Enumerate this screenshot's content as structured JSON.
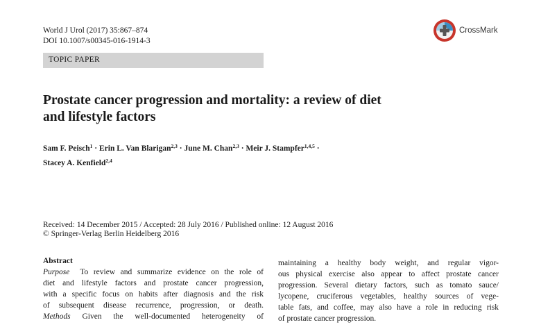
{
  "header": {
    "journal_line1": "World J Urol (2017) 35:867–874",
    "journal_line2": "DOI 10.1007/s00345-016-1914-3",
    "crossmark_label": "CrossMark",
    "crossmark_icon": "crossmark-icon",
    "topic": "TOPIC PAPER"
  },
  "article": {
    "title_line1": "Prostate cancer progression and mortality: a review of diet",
    "title_line2": "and lifestyle factors",
    "authors": [
      {
        "name": "Sam F. Peisch",
        "sup": "1",
        "sep": " · "
      },
      {
        "name": "Erin L. Van Blarigan",
        "sup": "2,3",
        "sep": " · "
      },
      {
        "name": "June M. Chan",
        "sup": "2,3",
        "sep": " · "
      },
      {
        "name": "Meir J. Stampfer",
        "sup": "1,4,5",
        "sep": " ·"
      },
      {
        "name": "Stacey A. Kenfield",
        "sup": "2,4",
        "sep": ""
      }
    ],
    "dates_line": "Received: 14 December 2015 / Accepted: 28 July 2016 / Published online: 12 August 2016",
    "copyright": "© Springer-Verlag Berlin Heidelberg 2016"
  },
  "abstract": {
    "heading": "Abstract",
    "purpose_label": "Purpose",
    "left_lines": [
      "To review and summarize evidence on the role of",
      "diet and lifestyle factors and prostate cancer progression,",
      "with a specific focus on habits after diagnosis and the risk",
      "of subsequent disease recurrence, progression, or death."
    ],
    "methods_label": "Methods",
    "methods_line": "Given the well-documented heterogeneity of",
    "right_lines": [
      "maintaining a healthy body weight, and regular vigor-",
      "ous physical exercise also appear to affect prostate cancer",
      "progression. Several dietary factors, such as tomato sauce/",
      "lycopene, cruciferous vegetables, healthy sources of vege-",
      "table fats, and coffee, may also have a role in reducing risk",
      "of prostate cancer progression."
    ]
  }
}
